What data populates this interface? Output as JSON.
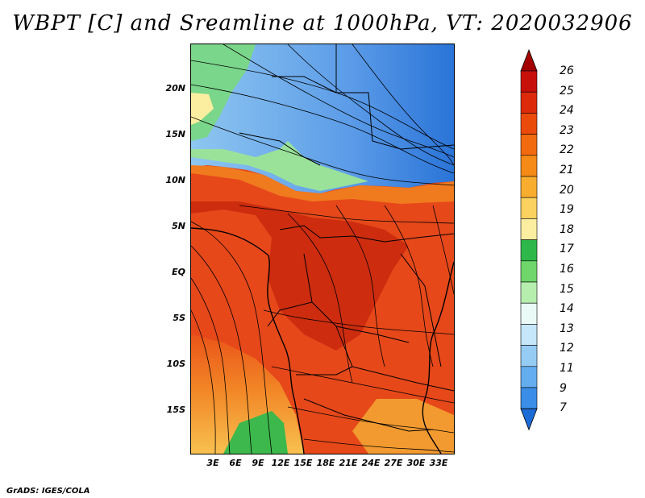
{
  "title": "WBPT [C] and Sreamline at 1000hPa, VT: 2020032906",
  "footer": "GrADS: IGES/COLA",
  "lat_labels": [
    "20N",
    "15N",
    "10N",
    "5N",
    "EQ",
    "5S",
    "10S",
    "15S"
  ],
  "lon_labels": [
    "3E",
    "6E",
    "9E",
    "12E",
    "15E",
    "18E",
    "21E",
    "24E",
    "27E",
    "30E",
    "33E"
  ],
  "colorbar": {
    "labels": [
      "26",
      "25",
      "24",
      "23",
      "22",
      "21",
      "20",
      "19",
      "18",
      "17",
      "16",
      "15",
      "14",
      "13",
      "12",
      "11",
      "9",
      "7"
    ],
    "colors": [
      "#a50000",
      "#c8100a",
      "#dc2a0a",
      "#ea4a0c",
      "#f26a10",
      "#f58a16",
      "#f8ad2e",
      "#fbd160",
      "#fbeea0",
      "#2fb84a",
      "#6ed66a",
      "#b6eeae",
      "#eafaf6",
      "#c6e6fa",
      "#96ccf4",
      "#64aef0",
      "#3a8ee8",
      "#1c6cd8"
    ]
  },
  "map": {
    "region": "Central and Southern Africa, 0E-35E, 20S-25N",
    "colors": {
      "ocean_warm": "#e44a12",
      "core_hot": "#c42810",
      "land_hot": "#e8501a",
      "cool_north": "#6aa8ec",
      "green": "#7ad68a",
      "south_west": "#f6b24c"
    }
  }
}
